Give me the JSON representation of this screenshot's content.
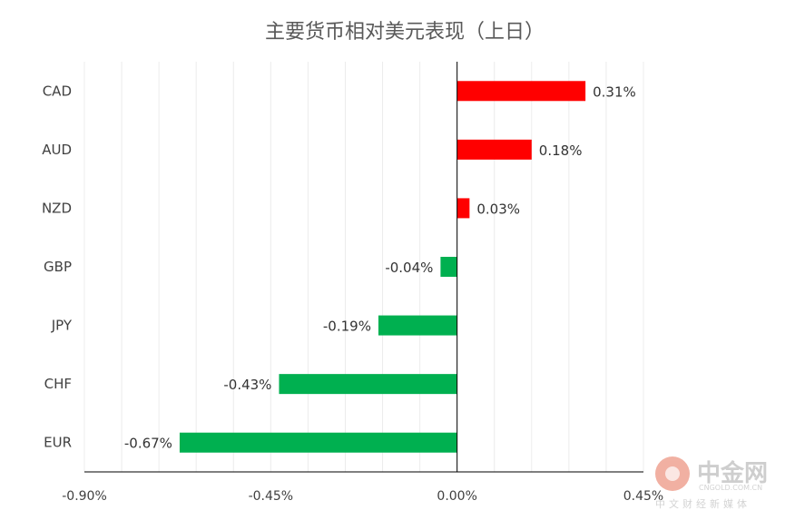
{
  "chart_data": {
    "type": "bar",
    "orientation": "horizontal",
    "title": "主要货币相对美元表现（上日）",
    "categories": [
      "CAD",
      "AUD",
      "NZD",
      "GBP",
      "JPY",
      "CHF",
      "EUR"
    ],
    "values": [
      0.31,
      0.18,
      0.03,
      -0.04,
      -0.19,
      -0.43,
      -0.67
    ],
    "data_labels": [
      "0.31%",
      "0.18%",
      "0.03%",
      "-0.04%",
      "-0.19%",
      "-0.43%",
      "-0.67%"
    ],
    "xlim": [
      -0.9,
      0.45
    ],
    "x_ticks": [
      -0.9,
      -0.45,
      0.0,
      0.45
    ],
    "x_tick_labels": [
      "-0.90%",
      "-0.45%",
      "0.00%",
      "0.45%"
    ],
    "minor_grid_step": 0.09,
    "grid": true,
    "colors": {
      "positive": "#ff0000",
      "negative": "#00b050",
      "axis": "#000000",
      "grid": "#ececec"
    }
  },
  "watermark": {
    "name": "中金网",
    "url": "CNGOLD.COM.CN",
    "sub": "中文财经新媒体"
  }
}
